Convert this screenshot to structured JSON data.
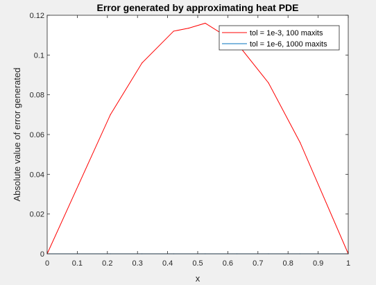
{
  "chart_data": {
    "type": "line",
    "title": "Error generated by approximating heat PDE",
    "xlabel": "x",
    "ylabel": "Absolute value of error generated",
    "xlim": [
      0,
      1
    ],
    "ylim": [
      0,
      0.12
    ],
    "x_ticks": [
      0,
      0.1,
      0.2,
      0.3,
      0.4,
      0.5,
      0.6,
      0.7,
      0.8,
      0.9,
      1
    ],
    "x_tick_labels": [
      "0",
      "0.1",
      "0.2",
      "0.3",
      "0.4",
      "0.5",
      "0.6",
      "0.7",
      "0.8",
      "0.9",
      "1"
    ],
    "y_ticks": [
      0,
      0.02,
      0.04,
      0.06,
      0.08,
      0.1,
      0.12
    ],
    "y_tick_labels": [
      "0",
      "0.02",
      "0.04",
      "0.06",
      "0.08",
      "0.1",
      "0.12"
    ],
    "grid": false,
    "legend_position": "top-right",
    "series": [
      {
        "name": "tol = 1e-3, 100 maxits",
        "color": "#ff0000",
        "x": [
          0,
          0.105,
          0.21,
          0.315,
          0.42,
          0.47,
          0.525,
          0.63,
          0.735,
          0.84,
          1
        ],
        "y": [
          0,
          0.035,
          0.07,
          0.096,
          0.112,
          0.1135,
          0.116,
          0.106,
          0.086,
          0.056,
          0
        ]
      },
      {
        "name": "tol = 1e-6, 1000 maxits",
        "color": "#0072bd",
        "x": [
          0,
          0.105,
          0.21,
          0.315,
          0.42,
          0.525,
          0.63,
          0.735,
          0.84,
          1
        ],
        "y": [
          0,
          0,
          0,
          0,
          0,
          0,
          0,
          0,
          0,
          0
        ]
      }
    ]
  }
}
